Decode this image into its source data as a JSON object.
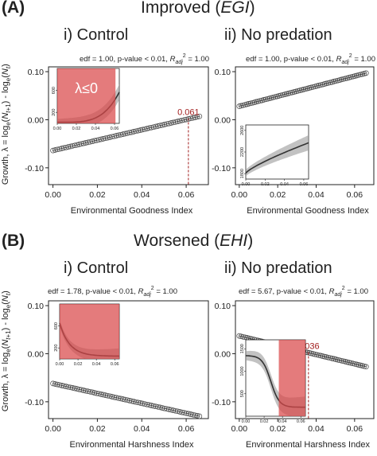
{
  "sections": [
    {
      "tag": "(A)",
      "title_prefix": "Improved (",
      "title_em": "EGI",
      "title_suffix": ")"
    },
    {
      "tag": "(B)",
      "title_prefix": "Worsened (",
      "title_em": "EHI",
      "title_suffix": ")"
    }
  ],
  "shared_ylabel": "Growth, λ = loge(Nt+1) - loge(Nt)",
  "chart_data": [
    {
      "id": "A-control",
      "type": "line",
      "subtitle": "i) Control",
      "stats": "",
      "xlabel": "Environmental Goodness Index",
      "ylabel": "",
      "xlim": [
        -0.002,
        0.07
      ],
      "ylim": [
        -0.135,
        0.11
      ],
      "xticks": [
        0.0,
        0.02,
        0.04,
        0.06
      ],
      "xtick_labels": [
        "0.00",
        "0.02",
        "0.04",
        "0.06"
      ],
      "yticks": [
        -0.1,
        0.0,
        0.1
      ],
      "ytick_labels": [
        "-0.10",
        "0.00",
        "0.10"
      ],
      "show_ytick_labels": true,
      "series": [
        {
          "x_start": 0.0,
          "x_end": 0.066,
          "y_start": -0.064,
          "y_end": 0.007
        }
      ],
      "threshold": {
        "x": 0.061,
        "label": "0.061"
      },
      "inset": {
        "xlim": [
          0.0,
          0.065
        ],
        "ylim": [
          0,
          1000
        ],
        "xticks": [
          0.0,
          0.02,
          0.04,
          0.06
        ],
        "xtick_labels": [
          "0.00",
          "0.02",
          "0.04",
          "0.06"
        ],
        "yticks": [
          200,
          600
        ],
        "ytick_labels": [
          "200",
          "600"
        ],
        "shade_x": [
          0.0,
          0.061
        ],
        "shade_label": "λ≤0",
        "curve": "rise"
      }
    },
    {
      "id": "A-nopred",
      "type": "line",
      "subtitle": "ii) No predation",
      "stats": "edf = 1.00,   p-value < 0.01,   Radj2 = 1.00",
      "xlabel": "Environmental Goodness Index",
      "ylabel": "",
      "xlim": [
        -0.002,
        0.07
      ],
      "ylim": [
        -0.135,
        0.11
      ],
      "xticks": [
        0.0,
        0.02,
        0.04,
        0.06
      ],
      "xtick_labels": [
        "0.00",
        "0.02",
        "0.04",
        "0.06"
      ],
      "yticks": [
        -0.1,
        0.0,
        0.1
      ],
      "ytick_labels": [
        "-0.10",
        "0.00",
        "0.10"
      ],
      "show_ytick_labels": true,
      "series": [
        {
          "x_start": 0.0,
          "x_end": 0.066,
          "y_start": 0.028,
          "y_end": 0.097
        }
      ],
      "threshold": null,
      "inset": {
        "xlim": [
          0.0,
          0.065
        ],
        "ylim": [
          1700,
          2700
        ],
        "xticks": [
          0.0,
          0.02,
          0.04,
          0.06
        ],
        "xtick_labels": [
          "0.00",
          "0.02",
          "0.04",
          "0.06"
        ],
        "yticks": [
          1800,
          2200,
          2600
        ],
        "ytick_labels": [
          "1800",
          "2200",
          "2600"
        ],
        "shade_x": null,
        "shade_label": "",
        "curve": "sqrt"
      }
    },
    {
      "id": "B-control",
      "type": "line",
      "subtitle": "i) Control",
      "stats": "edf = 1.78,   p-value < 0.01,   Radj2 = 1.00",
      "xlabel": "Environmental Harshness Index",
      "ylabel": "",
      "xlim": [
        -0.002,
        0.07
      ],
      "ylim": [
        -0.135,
        0.11
      ],
      "xticks": [
        0.0,
        0.02,
        0.04,
        0.06
      ],
      "xtick_labels": [
        "0.00",
        "0.02",
        "0.04",
        "0.06"
      ],
      "yticks": [
        -0.1,
        0.0,
        0.1
      ],
      "ytick_labels": [
        "-0.10",
        "0.00",
        "0.10"
      ],
      "show_ytick_labels": true,
      "series": [
        {
          "x_start": 0.0,
          "x_end": 0.066,
          "y_start": -0.062,
          "y_end": -0.13
        }
      ],
      "threshold": null,
      "inset": {
        "xlim": [
          0.0,
          0.065
        ],
        "ylim": [
          0,
          1000
        ],
        "xticks": [
          0.0,
          0.02,
          0.04,
          0.06
        ],
        "xtick_labels": [
          "0.00",
          "0.02",
          "0.04",
          "0.06"
        ],
        "yticks": [
          200,
          600
        ],
        "ytick_labels": [
          "200",
          "600"
        ],
        "shade_x": [
          0.0,
          0.065
        ],
        "shade_label": "",
        "curve": "decay"
      }
    },
    {
      "id": "B-nopred",
      "type": "line",
      "subtitle": "ii) No predation",
      "stats": "edf = 5.67,   p-value < 0.01,   Radj2 = 1.00",
      "xlabel": "Environmental Harshness Index",
      "ylabel": "",
      "xlim": [
        -0.002,
        0.07
      ],
      "ylim": [
        -0.135,
        0.11
      ],
      "xticks": [
        0.0,
        0.02,
        0.04,
        0.06
      ],
      "xtick_labels": [
        "0.00",
        "0.02",
        "0.04",
        "0.06"
      ],
      "yticks": [
        -0.1,
        0.0,
        0.1
      ],
      "ytick_labels": [
        "-0.10",
        "0.00",
        "0.10"
      ],
      "show_ytick_labels": true,
      "series": [
        {
          "x_start": 0.0,
          "x_end": 0.066,
          "y_start": 0.037,
          "y_end": -0.027
        }
      ],
      "threshold": {
        "x": 0.036,
        "label": "0.036"
      },
      "inset": {
        "xlim": [
          0.0,
          0.065
        ],
        "ylim": [
          0,
          1700
        ],
        "xticks": [
          0.0,
          0.02,
          0.04,
          0.06
        ],
        "xtick_labels": [
          "0.00",
          "0.02",
          "0.04",
          "0.06"
        ],
        "yticks": [
          500,
          1000,
          1500
        ],
        "ytick_labels": [
          "500",
          "1000",
          "1500"
        ],
        "shade_x": [
          0.036,
          0.065
        ],
        "shade_label": "",
        "curve": "sigmoid-down"
      }
    }
  ],
  "header_stats_A": "edf = 1.00,   p-value < 0.01,   Radj2 = 1.00",
  "colors": {
    "points": "#444444",
    "shade": "#d9484a",
    "threshold": "#a11c1c",
    "band": "#9a9a9a"
  }
}
